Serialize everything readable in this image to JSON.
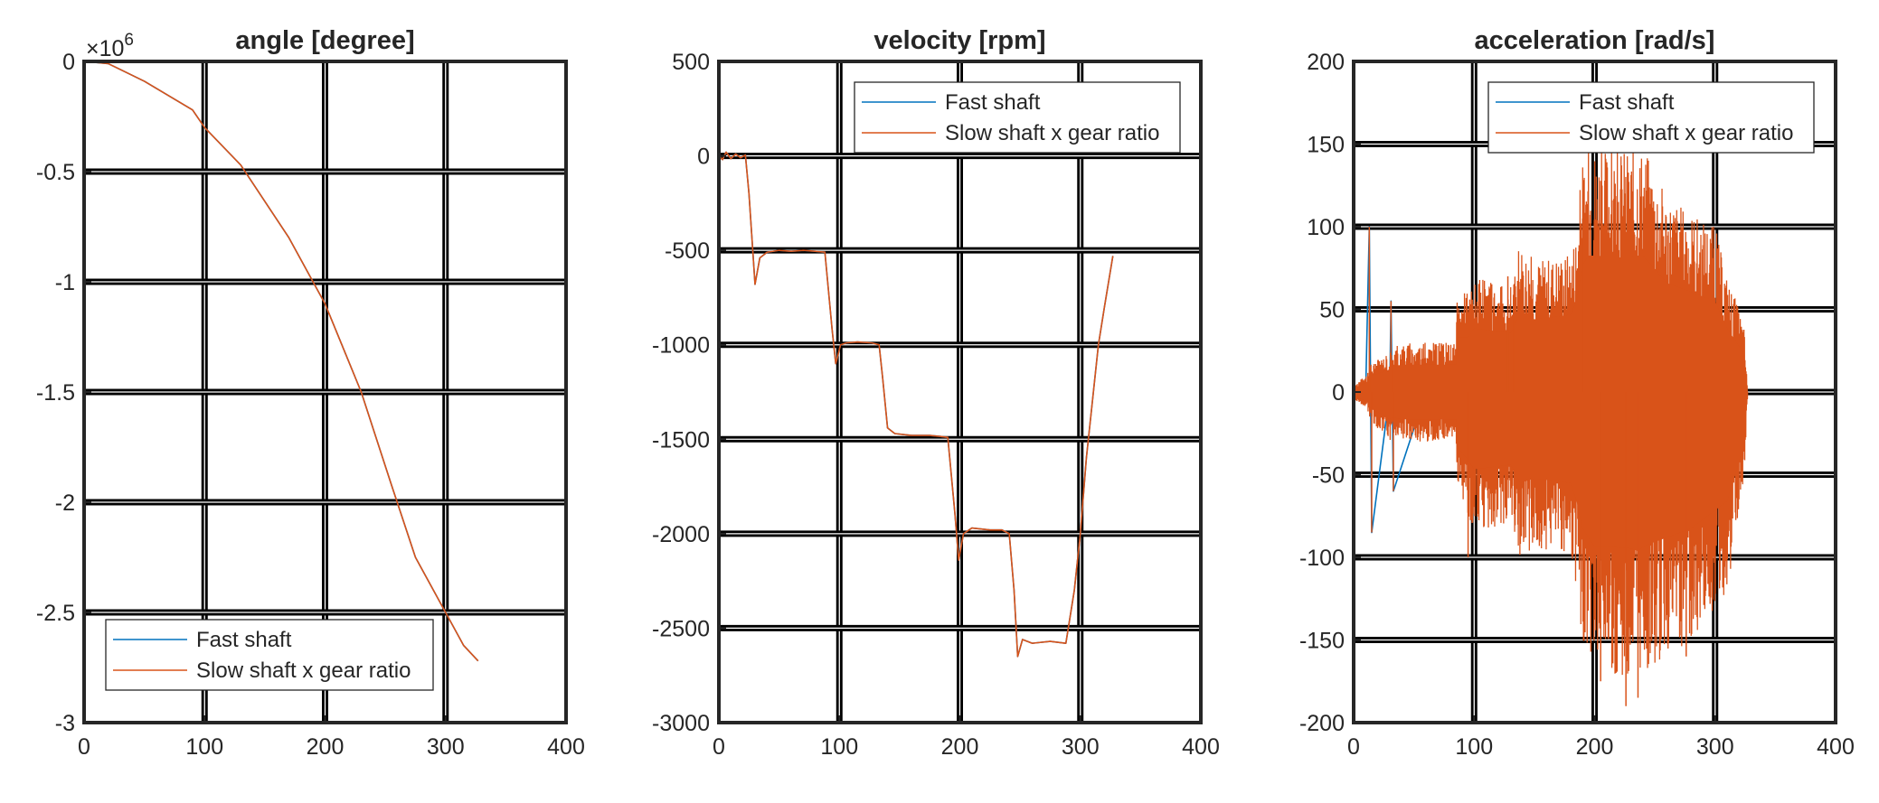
{
  "figure": {
    "background": "#ffffff"
  },
  "colors": {
    "fast": "#0072BD",
    "slow": "#D95319",
    "axis": "#262626",
    "grid": "#000000"
  },
  "chart_data": [
    {
      "type": "line",
      "title": "angle [degree]",
      "xlabel": "",
      "ylabel": "",
      "exponent_label": "×10",
      "exponent_power": "6",
      "xlim": [
        0,
        400
      ],
      "ylim": [
        -3,
        0
      ],
      "xticks": [
        0,
        100,
        200,
        300,
        400
      ],
      "yticks": [
        -3,
        -2.5,
        -2,
        -1.5,
        -1,
        -0.5,
        0
      ],
      "xtick_labels": [
        "0",
        "100",
        "200",
        "300",
        "400"
      ],
      "ytick_labels": [
        "-3",
        "-2.5",
        "-2",
        "-1.5",
        "-1",
        "-0.5",
        "0"
      ],
      "grid": true,
      "legend_position": "bottom-left",
      "legend": [
        "Fast shaft",
        "Slow shaft x gear ratio"
      ],
      "series": [
        {
          "name": "Fast shaft",
          "color": "#0072BD",
          "x": [
            0,
            20,
            50,
            90,
            100,
            130,
            170,
            200,
            230,
            255,
            275,
            300,
            315,
            327
          ],
          "y": [
            0,
            -0.01,
            -0.09,
            -0.22,
            -0.3,
            -0.47,
            -0.8,
            -1.1,
            -1.5,
            -1.92,
            -2.25,
            -2.5,
            -2.65,
            -2.72
          ]
        },
        {
          "name": "Slow shaft x gear ratio",
          "color": "#D95319",
          "x": [
            0,
            20,
            50,
            90,
            100,
            130,
            170,
            200,
            230,
            255,
            275,
            300,
            315,
            327
          ],
          "y": [
            0,
            -0.01,
            -0.09,
            -0.22,
            -0.3,
            -0.47,
            -0.8,
            -1.1,
            -1.5,
            -1.92,
            -2.25,
            -2.5,
            -2.65,
            -2.72
          ]
        }
      ]
    },
    {
      "type": "line",
      "title": "velocity [rpm]",
      "xlabel": "",
      "ylabel": "",
      "xlim": [
        0,
        400
      ],
      "ylim": [
        -3000,
        500
      ],
      "xticks": [
        0,
        100,
        200,
        300,
        400
      ],
      "yticks": [
        -3000,
        -2500,
        -2000,
        -1500,
        -1000,
        -500,
        0,
        500
      ],
      "xtick_labels": [
        "0",
        "100",
        "200",
        "300",
        "400"
      ],
      "ytick_labels": [
        "-3000",
        "-2500",
        "-2000",
        "-1500",
        "-1000",
        "-500",
        "0",
        "500"
      ],
      "grid": true,
      "legend_position": "top-right",
      "legend": [
        "Fast shaft",
        "Slow shaft x gear ratio"
      ],
      "series": [
        {
          "name": "Fast shaft",
          "color": "#0072BD",
          "x": [
            0,
            3,
            6,
            10,
            14,
            18,
            22,
            25,
            30,
            34,
            40,
            50,
            60,
            70,
            80,
            88,
            94,
            97,
            101,
            106,
            115,
            127,
            133,
            136,
            140,
            146,
            160,
            175,
            184,
            190,
            196,
            199,
            203,
            210,
            225,
            235,
            241,
            245,
            248,
            252,
            260,
            275,
            288,
            295,
            300,
            305,
            310,
            315,
            320,
            327
          ],
          "y": [
            0,
            -20,
            20,
            -15,
            10,
            -10,
            5,
            -200,
            -680,
            -540,
            -510,
            -500,
            -505,
            -500,
            -505,
            -510,
            -920,
            -1100,
            -1000,
            -990,
            -985,
            -990,
            -1000,
            -1180,
            -1440,
            -1470,
            -1480,
            -1480,
            -1485,
            -1490,
            -1900,
            -2140,
            -2000,
            -1970,
            -1980,
            -1980,
            -2000,
            -2300,
            -2650,
            -2560,
            -2580,
            -2570,
            -2580,
            -2300,
            -2000,
            -1600,
            -1300,
            -1000,
            -800,
            -530
          ]
        },
        {
          "name": "Slow shaft x gear ratio",
          "color": "#D95319",
          "x": [
            0,
            3,
            6,
            10,
            14,
            18,
            22,
            25,
            30,
            34,
            40,
            50,
            60,
            70,
            80,
            88,
            94,
            97,
            101,
            106,
            115,
            127,
            133,
            136,
            140,
            146,
            160,
            175,
            184,
            190,
            196,
            199,
            203,
            210,
            225,
            235,
            241,
            245,
            248,
            252,
            260,
            275,
            288,
            295,
            300,
            305,
            310,
            315,
            320,
            327
          ],
          "y": [
            0,
            -20,
            20,
            -15,
            10,
            -10,
            5,
            -200,
            -680,
            -540,
            -510,
            -500,
            -505,
            -500,
            -505,
            -510,
            -920,
            -1100,
            -1000,
            -990,
            -985,
            -990,
            -1000,
            -1180,
            -1440,
            -1470,
            -1480,
            -1480,
            -1485,
            -1490,
            -1900,
            -2140,
            -2000,
            -1970,
            -1980,
            -1980,
            -2000,
            -2300,
            -2650,
            -2560,
            -2580,
            -2570,
            -2580,
            -2300,
            -2000,
            -1600,
            -1300,
            -1000,
            -800,
            -530
          ]
        }
      ]
    },
    {
      "type": "line",
      "title": "acceleration [rad/s]",
      "xlabel": "",
      "ylabel": "",
      "xlim": [
        0,
        400
      ],
      "ylim": [
        -200,
        200
      ],
      "xticks": [
        0,
        100,
        200,
        300,
        400
      ],
      "yticks": [
        -200,
        -150,
        -100,
        -50,
        0,
        50,
        100,
        150,
        200
      ],
      "xtick_labels": [
        "0",
        "100",
        "200",
        "300",
        "400"
      ],
      "ytick_labels": [
        "-200",
        "-150",
        "-100",
        "-50",
        "0",
        "50",
        "100",
        "150",
        "200"
      ],
      "grid": true,
      "legend_position": "top-right",
      "legend": [
        "Fast shaft",
        "Slow shaft x gear ratio"
      ],
      "series": [
        {
          "name": "Fast shaft",
          "color": "#0072BD",
          "x": [
            0,
            10,
            13,
            15,
            30,
            31,
            33,
            60,
            85,
            90,
            95,
            140,
            150,
            185,
            195,
            200,
            236,
            240,
            280,
            300,
            320,
            327
          ],
          "y": [
            0,
            0,
            100,
            -85,
            0,
            55,
            -60,
            0,
            0,
            0,
            0,
            0,
            0,
            0,
            0,
            0,
            0,
            0,
            0,
            0,
            0,
            0
          ]
        },
        {
          "name": "Slow shaft x gear ratio",
          "color": "#D95319",
          "envelope": {
            "x": [
              0,
              10,
              12,
              14,
              20,
              30,
              32,
              40,
              60,
              85,
              86,
              95,
              100,
              130,
              133,
              138,
              150,
              180,
              185,
              190,
              195,
              200,
              210,
              230,
              236,
              240,
              260,
              280,
              300,
              310,
              320,
              324,
              327
            ],
            "upper": [
              4,
              10,
              12,
              18,
              20,
              25,
              28,
              30,
              30,
              30,
              60,
              60,
              70,
              65,
              70,
              90,
              80,
              85,
              100,
              140,
              150,
              150,
              148,
              148,
              150,
              150,
              120,
              110,
              100,
              70,
              50,
              40,
              0
            ],
            "lower": [
              -4,
              -10,
              -12,
              -18,
              -22,
              -30,
              -28,
              -30,
              -30,
              -30,
              -60,
              -75,
              -85,
              -80,
              -85,
              -100,
              -95,
              -100,
              -120,
              -150,
              -160,
              -170,
              -170,
              -172,
              -175,
              -170,
              -160,
              -150,
              -130,
              -120,
              -75,
              -60,
              0
            ]
          },
          "spikes": [
            {
              "x": 13,
              "y": 100
            },
            {
              "x": 15,
              "y": -85
            },
            {
              "x": 31,
              "y": 55
            },
            {
              "x": 33,
              "y": -60
            },
            {
              "x": 95,
              "y": -100
            },
            {
              "x": 128,
              "y": 70
            },
            {
              "x": 133,
              "y": 65
            },
            {
              "x": 190,
              "y": 105
            },
            {
              "x": 205,
              "y": -175
            },
            {
              "x": 226,
              "y": -190
            },
            {
              "x": 236,
              "y": -185
            },
            {
              "x": 276,
              "y": -160
            }
          ]
        }
      ]
    }
  ]
}
